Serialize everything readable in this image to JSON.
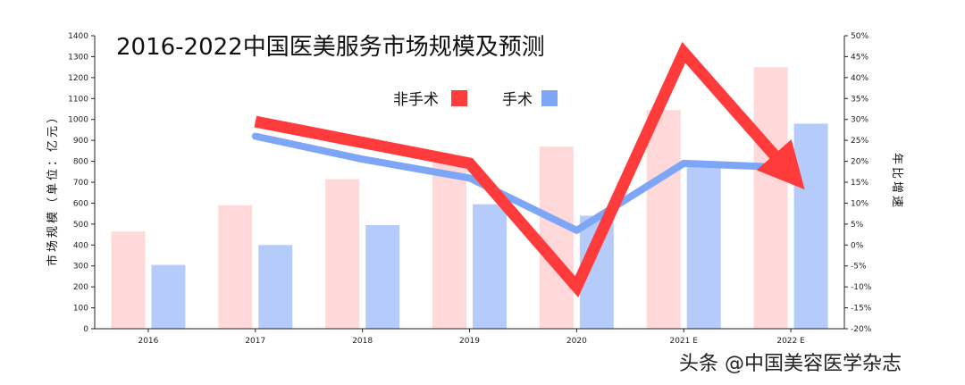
{
  "chart_data": {
    "type": "bar",
    "title": "2016-2022中国医美服务市场规模及预测",
    "categories": [
      "2016",
      "2017",
      "2018",
      "2019",
      "2020",
      "2021 E",
      "2022 E"
    ],
    "ylabel": "市场规模（单位：亿元）",
    "y2label": "年比增速",
    "ylim": [
      0,
      1400
    ],
    "yticks": [
      0,
      100,
      200,
      300,
      400,
      500,
      600,
      700,
      800,
      900,
      1000,
      1100,
      1200,
      1300,
      1400
    ],
    "y2lim": [
      -20,
      50
    ],
    "y2ticks": [
      -20,
      -15,
      -10,
      -5,
      0,
      5,
      10,
      15,
      20,
      25,
      30,
      35,
      40,
      45,
      50
    ],
    "y2tick_suffix": "%",
    "legend_position": "top-center",
    "series": [
      {
        "name": "非手术",
        "kind": "bar",
        "color": "#ffd9d9",
        "values": [
          465,
          590,
          715,
          800,
          870,
          1045,
          1250
        ]
      },
      {
        "name": "手术",
        "kind": "bar",
        "color": "#b5ccfa",
        "values": [
          305,
          400,
          495,
          595,
          540,
          800,
          980
        ]
      },
      {
        "name": "非手术",
        "kind": "line",
        "axis": "right",
        "color": "#ff3b3b",
        "values": [
          null,
          29.5,
          24.5,
          19.5,
          -10,
          46,
          17
        ]
      },
      {
        "name": "手术",
        "kind": "line",
        "axis": "right",
        "color": "#7ea6f7",
        "values": [
          null,
          26,
          20.5,
          16,
          3.5,
          19.5,
          18.5
        ]
      }
    ],
    "legend": [
      {
        "label": "非手术",
        "color": "#ff3b3b"
      },
      {
        "label": "手术",
        "color": "#7ea6f7"
      }
    ]
  },
  "watermark": "头条 @中国美容医学杂志"
}
